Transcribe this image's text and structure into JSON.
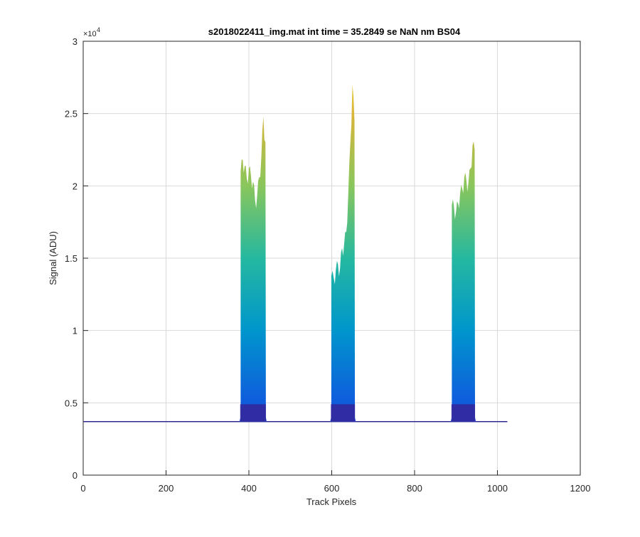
{
  "chart_data": {
    "type": "area",
    "title": "s2018022411_img.mat int time = 35.2849 se  NaN nm BS04",
    "xlabel": "Track Pixels",
    "ylabel": "Signal (ADU)",
    "xlim": [
      0,
      1200
    ],
    "ylim": [
      0,
      30000
    ],
    "x_ticks": [
      0,
      200,
      400,
      600,
      800,
      1000,
      1200
    ],
    "x_tick_labels": [
      "0",
      "200",
      "400",
      "600",
      "800",
      "1000",
      "1200"
    ],
    "y_ticks": [
      0,
      5000,
      10000,
      15000,
      20000,
      25000,
      30000
    ],
    "y_tick_labels": [
      "0",
      "0.5",
      "1",
      "1.5",
      "2",
      "2.5",
      "3"
    ],
    "y_exponent_label": "×10",
    "y_exponent_power": "4",
    "grid": true,
    "baseline": 3700,
    "data_range_x": [
      1,
      1024
    ],
    "colormap": [
      "#3e26a8",
      "#0f5cdd",
      "#0096cc",
      "#25b8a0",
      "#89c65c",
      "#dab53a",
      "#f9e426"
    ],
    "series": [
      {
        "peaks": [
          {
            "x": [
              380,
              385,
              390,
              395,
              400,
              405,
              410,
              415,
              420,
              425,
              430,
              435,
              440
            ],
            "y": [
              21000,
              21800,
              21400,
              20500,
              21200,
              20700,
              20300,
              19000,
              19300,
              20600,
              22000,
              24800,
              23000
            ]
          },
          {
            "x": [
              599,
              605,
              610,
              615,
              620,
              625,
              630,
              635,
              640,
              645,
              650,
              655
            ],
            "y": [
              13800,
              13600,
              14200,
              14600,
              14300,
              15700,
              16000,
              16800,
              19500,
              23000,
              27000,
              24500
            ]
          },
          {
            "x": [
              890,
              895,
              900,
              905,
              910,
              915,
              920,
              925,
              930,
              935,
              940,
              945
            ],
            "y": [
              18700,
              18600,
              18200,
              18800,
              19500,
              19800,
              20600,
              20400,
              20200,
              21200,
              22800,
              22500
            ]
          }
        ]
      }
    ]
  }
}
